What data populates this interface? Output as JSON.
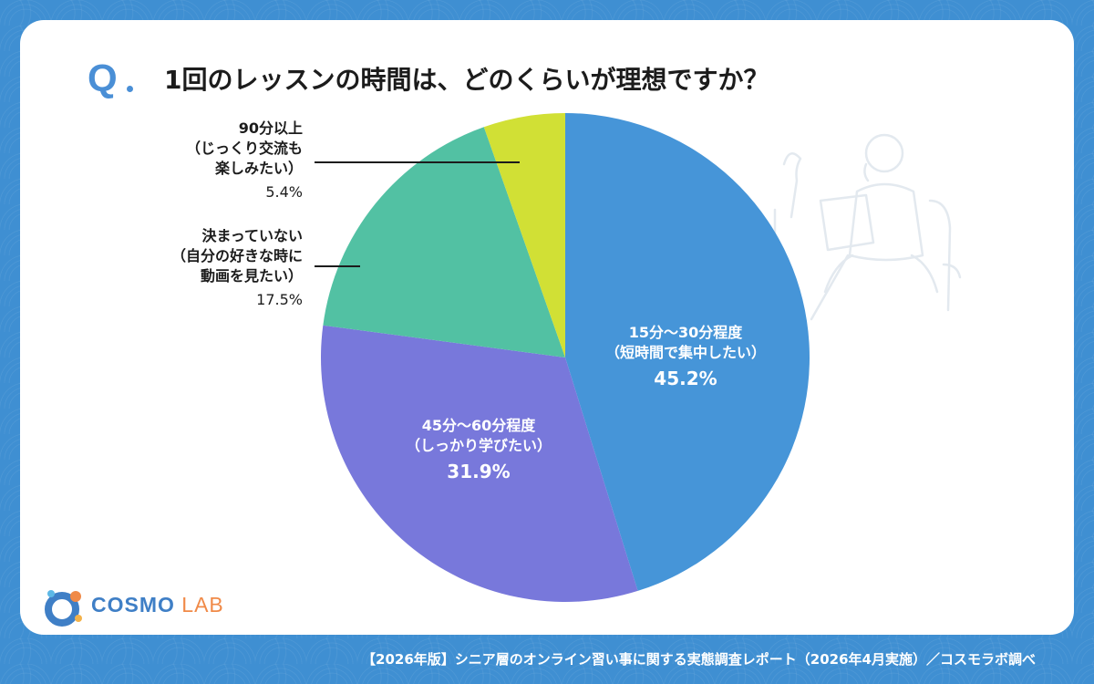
{
  "header": {
    "q_label": "Q",
    "question": "1回のレッスンの時間は、どのくらいが理想ですか？"
  },
  "chart_data": {
    "type": "pie",
    "title": "1回のレッスンの時間は、どのくらいが理想ですか？",
    "unit": "%",
    "slices": [
      {
        "lines": [
          "15分～30分程度",
          "（短時間で集中したい）"
        ],
        "value": 45.2,
        "value_label": "45.2%",
        "color": "#4695d8"
      },
      {
        "lines": [
          "45分～60分程度",
          "（しっかり学びたい）"
        ],
        "value": 31.9,
        "value_label": "31.9%",
        "color": "#7878db"
      },
      {
        "lines": [
          "決まっていない",
          "（自分の好きな時に",
          "動画を見たい）"
        ],
        "value": 17.5,
        "value_label": "17.5%",
        "color": "#52c1a3"
      },
      {
        "lines": [
          "90分以上",
          "（じっくり交流も",
          "楽しみたい）"
        ],
        "value": 5.4,
        "value_label": "5.4%",
        "color": "#d1e035"
      }
    ]
  },
  "brand": {
    "logo_word_1": "COSMO",
    "logo_word_2": "LAB",
    "primary_color": "#3f7fc6",
    "accent_color": "#f08a48",
    "logo_icon": "cosmo-lab-logo-icon"
  },
  "footer": {
    "source": "【2026年版】シニア層のオンライン習い事に関する実態調査レポート（2026年4月実施）／コスモラボ調べ"
  }
}
